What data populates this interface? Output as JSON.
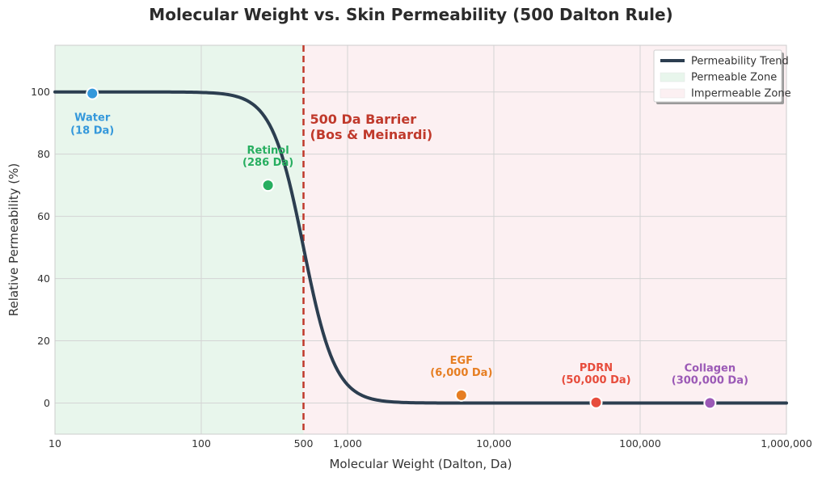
{
  "chart_data": {
    "type": "line",
    "title": "Molecular Weight vs. Skin Permeability (500 Dalton Rule)",
    "xlabel": "Molecular Weight (Dalton, Da)",
    "ylabel": "Relative Permeability (%)",
    "x_scale": "log",
    "xlim": [
      10,
      1000000
    ],
    "ylim": [
      -10,
      115
    ],
    "grid": true,
    "x_ticks": [
      {
        "value": 10,
        "label": "10"
      },
      {
        "value": 100,
        "label": "100"
      },
      {
        "value": 500,
        "label": "500"
      },
      {
        "value": 1000,
        "label": "1,000"
      },
      {
        "value": 10000,
        "label": "10,000"
      },
      {
        "value": 100000,
        "label": "100,000"
      },
      {
        "value": 1000000,
        "label": "1,000,000"
      }
    ],
    "y_ticks": [
      {
        "value": 0,
        "label": "0"
      },
      {
        "value": 20,
        "label": "20"
      },
      {
        "value": 40,
        "label": "40"
      },
      {
        "value": 60,
        "label": "60"
      },
      {
        "value": 80,
        "label": "80"
      },
      {
        "value": 100,
        "label": "100"
      }
    ],
    "series": [
      {
        "name": "Permeability Trend",
        "color": "#2c3e50",
        "curve": "logistic",
        "midpoint": 500,
        "steepness": 4
      }
    ],
    "zones": [
      {
        "name": "Permeable Zone",
        "from": 10,
        "to": 500,
        "color": "#e8f6ec"
      },
      {
        "name": "Impermeable Zone",
        "from": 500,
        "to": 1000000,
        "color": "#fcf0f2"
      }
    ],
    "barrier": {
      "x": 500,
      "label_line1": "500 Da Barrier",
      "label_line2": "(Bos & Meinardi)",
      "color": "#c0392b"
    },
    "points": [
      {
        "name": "Water",
        "sub": "(18 Da)",
        "x": 18,
        "y": 99.5,
        "color": "#3498db",
        "label_pos": "below"
      },
      {
        "name": "Retinol",
        "sub": "(286 Da)",
        "x": 286,
        "y": 70,
        "color": "#27ae60",
        "label_pos": "above"
      },
      {
        "name": "EGF",
        "sub": "(6,000 Da)",
        "x": 6000,
        "y": 2.5,
        "color": "#e67e22",
        "label_pos": "above"
      },
      {
        "name": "PDRN",
        "sub": "(50,000 Da)",
        "x": 50000,
        "y": 0.2,
        "color": "#e74c3c",
        "label_pos": "above"
      },
      {
        "name": "Collagen",
        "sub": "(300,000 Da)",
        "x": 300000,
        "y": 0.05,
        "color": "#9b59b6",
        "label_pos": "above"
      }
    ],
    "legend": {
      "placement": "top-right",
      "entries": [
        "Permeability Trend",
        "Permeable Zone",
        "Impermeable Zone"
      ]
    }
  }
}
